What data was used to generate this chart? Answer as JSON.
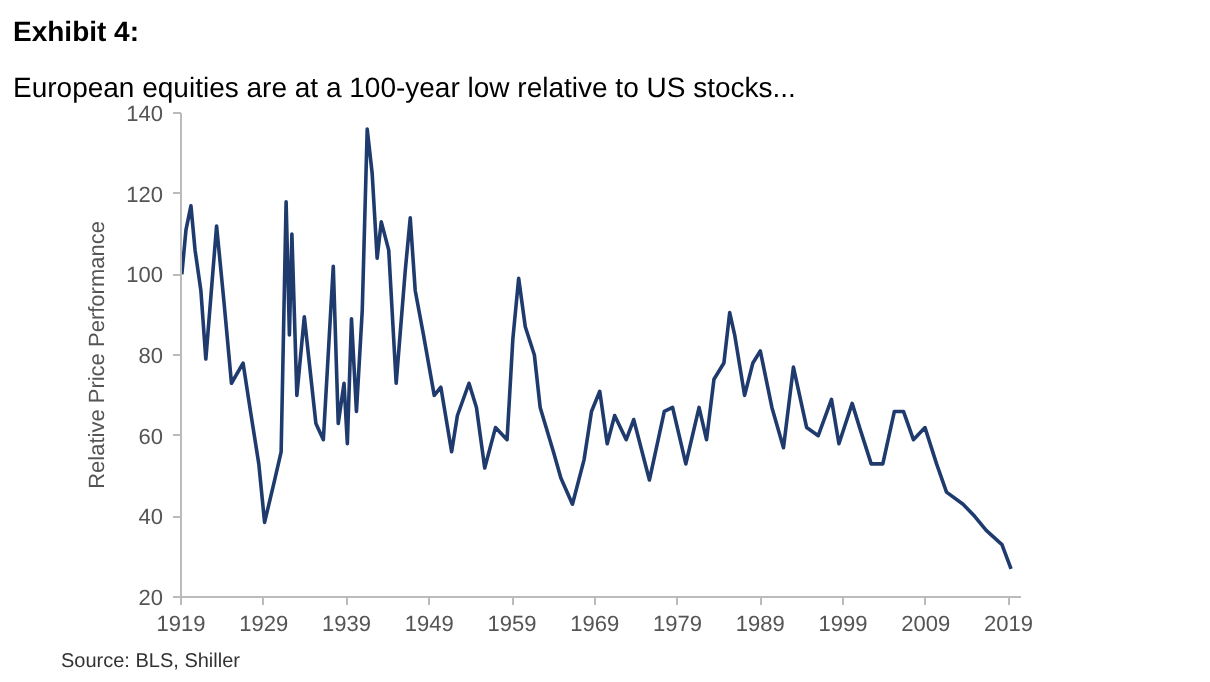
{
  "chart_data": {
    "type": "line",
    "title": "Exhibit 4:",
    "subtitle": "European equities are at a 100-year low relative to US stocks...",
    "ylabel": "Relative Price Performance",
    "annotations": [
      "Source: BLS, Shiller"
    ],
    "x": [
      1919.1,
      1919.6,
      1920.2,
      1920.7,
      1921.4,
      1922,
      1923.3,
      1924.2,
      1925.1,
      1926.5,
      1927.4,
      1928.4,
      1929.1,
      1930.2,
      1931.1,
      1931.7,
      1932.1,
      1932.4,
      1933,
      1933.9,
      1935.3,
      1936.2,
      1937.4,
      1938,
      1938.7,
      1939.1,
      1939.6,
      1940.2,
      1940.9,
      1941.5,
      1942.1,
      1942.7,
      1943.2,
      1944.1,
      1945,
      1946.1,
      1946.7,
      1947.3,
      1948.3,
      1949.6,
      1950.4,
      1951.7,
      1952.4,
      1953.8,
      1954.7,
      1955.7,
      1957,
      1958.4,
      1959.1,
      1959.8,
      1960.6,
      1961.7,
      1962.4,
      1964,
      1964.9,
      1966.3,
      1967.7,
      1968.6,
      1969.6,
      1970.5,
      1971.4,
      1972.8,
      1973.7,
      1975.6,
      1977.4,
      1978.4,
      1980,
      1981.6,
      1982.5,
      1983.4,
      1984.6,
      1985.3,
      1985.9,
      1987.1,
      1988.1,
      1989,
      1990.4,
      1991.8,
      1993,
      1994.6,
      1996,
      1997.6,
      1998.5,
      2000.1,
      2001,
      2002.4,
      2003.8,
      2005.2,
      2006.3,
      2007.5,
      2008.9,
      2010.3,
      2011.5,
      2013.5,
      2014.9,
      2016.3,
      2018.2,
      2019.3
    ],
    "series": [
      {
        "color": "#1f3b6e",
        "values": [
          100,
          111,
          117,
          106,
          96,
          79,
          112,
          93,
          73,
          78,
          66,
          53,
          38.5,
          48,
          56,
          118,
          85,
          110,
          70,
          89.5,
          63,
          59,
          102,
          63,
          73,
          58,
          89,
          66,
          91,
          136,
          125,
          104,
          113,
          106,
          73,
          101,
          114,
          96,
          85,
          70,
          72,
          56,
          65,
          73,
          67,
          52,
          62,
          59,
          84,
          99,
          87,
          80,
          67,
          56,
          49.5,
          43,
          54,
          66,
          71,
          58,
          65,
          59,
          64,
          49,
          66,
          67,
          53,
          67,
          59,
          74,
          78,
          90.5,
          85,
          70,
          78,
          81,
          67,
          57,
          77,
          62,
          60,
          69,
          58,
          68,
          62,
          53,
          53,
          66,
          66,
          59,
          62,
          53,
          46,
          43,
          40,
          36.5,
          33,
          27
        ]
      }
    ],
    "xlim": [
      1919,
      2020.5
    ],
    "ylim": [
      20,
      140
    ],
    "xticks": [
      1919,
      1929,
      1939,
      1949,
      1959,
      1969,
      1979,
      1989,
      1999,
      2009,
      2019
    ],
    "yticks": [
      20,
      40,
      60,
      80,
      100,
      120,
      140
    ],
    "grid": false,
    "marker": "none",
    "line_style": "solid"
  }
}
